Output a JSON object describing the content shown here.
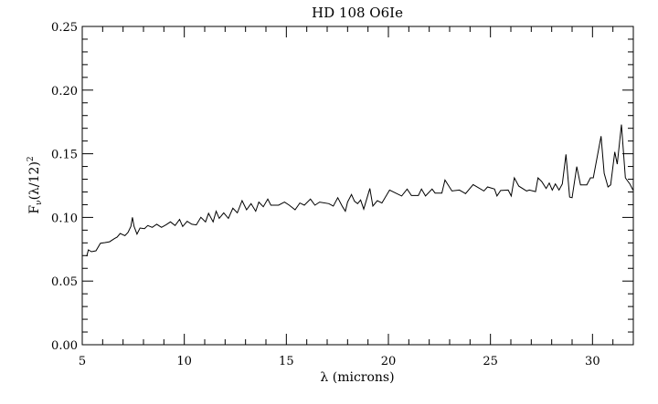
{
  "chart_data": {
    "type": "line",
    "title": "HD 108  O6Ie",
    "xlabel": "λ (microns)",
    "ylabel": "F",
    "ylabel_sub": "ν",
    "ylabel_rest": "(λ/12)",
    "ylabel_sup": "2",
    "xlim": [
      5,
      32
    ],
    "ylim": [
      0.0,
      0.25
    ],
    "xticks": [
      5,
      10,
      15,
      20,
      25,
      30
    ],
    "xtick_labels": [
      "5",
      "10",
      "15",
      "20",
      "25",
      "30"
    ],
    "yticks": [
      0.0,
      0.05,
      0.1,
      0.15,
      0.2,
      0.25
    ],
    "ytick_labels": [
      "0.00",
      "0.05",
      "0.10",
      "0.15",
      "0.20",
      "0.25"
    ],
    "x_minor_step": 1,
    "y_minor_step": 0.01,
    "grid": false,
    "line_color": "#000000",
    "series": [
      {
        "x": [
          5.22,
          5.3,
          5.45,
          5.67,
          5.89,
          6.12,
          6.34,
          6.57,
          6.71,
          6.86,
          7.09,
          7.24,
          7.38,
          7.46,
          7.54,
          7.68,
          7.83,
          8.05,
          8.21,
          8.43,
          8.65,
          8.88,
          9.1,
          9.32,
          9.55,
          9.77,
          9.92,
          10.14,
          10.37,
          10.59,
          10.81,
          11.04,
          11.19,
          11.41,
          11.56,
          11.71,
          11.93,
          12.16,
          12.38,
          12.6,
          12.83,
          13.05,
          13.27,
          13.5,
          13.65,
          13.87,
          14.09,
          14.24,
          14.62,
          14.91,
          15.14,
          15.43,
          15.66,
          15.88,
          16.18,
          16.4,
          16.63,
          17.08,
          17.3,
          17.52,
          17.75,
          17.89,
          18.0,
          18.19,
          18.34,
          18.49,
          18.64,
          18.79,
          19.09,
          19.24,
          19.46,
          19.68,
          20.06,
          20.65,
          20.92,
          21.13,
          21.47,
          21.62,
          21.82,
          22.14,
          22.29,
          22.62,
          22.77,
          23.11,
          23.48,
          23.78,
          24.15,
          24.68,
          24.86,
          25.2,
          25.32,
          25.5,
          25.87,
          26.02,
          26.17,
          26.39,
          26.77,
          26.91,
          27.21,
          27.33,
          27.51,
          27.73,
          27.88,
          28.03,
          28.18,
          28.36,
          28.52,
          28.7,
          28.88,
          29.0,
          29.23,
          29.41,
          29.72,
          29.9,
          30.04,
          30.42,
          30.57,
          30.76,
          30.89,
          31.09,
          31.21,
          31.42,
          31.61,
          31.83,
          31.98
        ],
        "y": [
          0.0695,
          0.0745,
          0.0731,
          0.0738,
          0.0797,
          0.0802,
          0.0809,
          0.0833,
          0.0845,
          0.0874,
          0.0857,
          0.0881,
          0.0929,
          0.1001,
          0.0929,
          0.0869,
          0.0917,
          0.0912,
          0.0936,
          0.0922,
          0.0946,
          0.0922,
          0.0941,
          0.0965,
          0.0936,
          0.0984,
          0.0929,
          0.0969,
          0.0946,
          0.0941,
          0.1001,
          0.0965,
          0.1032,
          0.0965,
          0.1049,
          0.0993,
          0.1036,
          0.0993,
          0.1072,
          0.1036,
          0.1132,
          0.106,
          0.1108,
          0.1049,
          0.112,
          0.1084,
          0.1144,
          0.1096,
          0.1096,
          0.112,
          0.1096,
          0.106,
          0.1113,
          0.1096,
          0.1144,
          0.1096,
          0.112,
          0.1108,
          0.1089,
          0.1155,
          0.1084,
          0.1049,
          0.112,
          0.118,
          0.1127,
          0.1108,
          0.1137,
          0.1065,
          0.1227,
          0.1089,
          0.1132,
          0.1113,
          0.1215,
          0.1168,
          0.1223,
          0.1172,
          0.1172,
          0.1223,
          0.1168,
          0.1223,
          0.1191,
          0.1191,
          0.1294,
          0.1208,
          0.1215,
          0.1187,
          0.1258,
          0.1208,
          0.1239,
          0.1223,
          0.1168,
          0.1211,
          0.1215,
          0.1168,
          0.1311,
          0.1246,
          0.1208,
          0.1215,
          0.1203,
          0.1311,
          0.1282,
          0.1227,
          0.127,
          0.1215,
          0.1263,
          0.1215,
          0.1263,
          0.1495,
          0.116,
          0.1155,
          0.1399,
          0.1256,
          0.1256,
          0.1311,
          0.1311,
          0.1638,
          0.1347,
          0.1239,
          0.1256,
          0.1514,
          0.1418,
          0.1729,
          0.1311,
          0.1263,
          0.1215
        ]
      }
    ]
  }
}
